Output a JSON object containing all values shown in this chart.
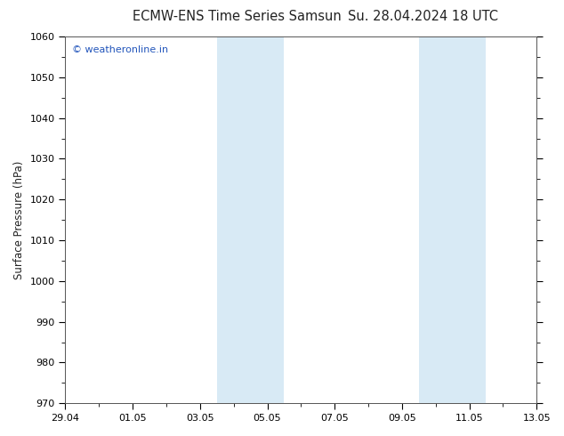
{
  "title_left": "ECMW-ENS Time Series Samsun",
  "title_right": "Su. 28.04.2024 18 UTC",
  "ylabel": "Surface Pressure (hPa)",
  "ylim": [
    970,
    1060
  ],
  "yticks": [
    970,
    980,
    990,
    1000,
    1010,
    1020,
    1030,
    1040,
    1050,
    1060
  ],
  "xtick_labels": [
    "29.04",
    "01.05",
    "03.05",
    "05.05",
    "07.05",
    "09.05",
    "11.05",
    "13.05"
  ],
  "xtick_positions": [
    0,
    2,
    4,
    6,
    8,
    10,
    12,
    14
  ],
  "shaded_bands": [
    {
      "x_start": 4.5,
      "x_end": 6.5
    },
    {
      "x_start": 10.5,
      "x_end": 12.5
    }
  ],
  "band_color": "#d8eaf5",
  "background_color": "#ffffff",
  "plot_bg_color": "#ffffff",
  "watermark_text": "© weatheronline.in",
  "watermark_color": "#2255bb",
  "title_color": "#222222",
  "title_fontsize": 10.5,
  "axis_fontsize": 8.5,
  "tick_fontsize": 8,
  "x_min": 0,
  "x_max": 14
}
